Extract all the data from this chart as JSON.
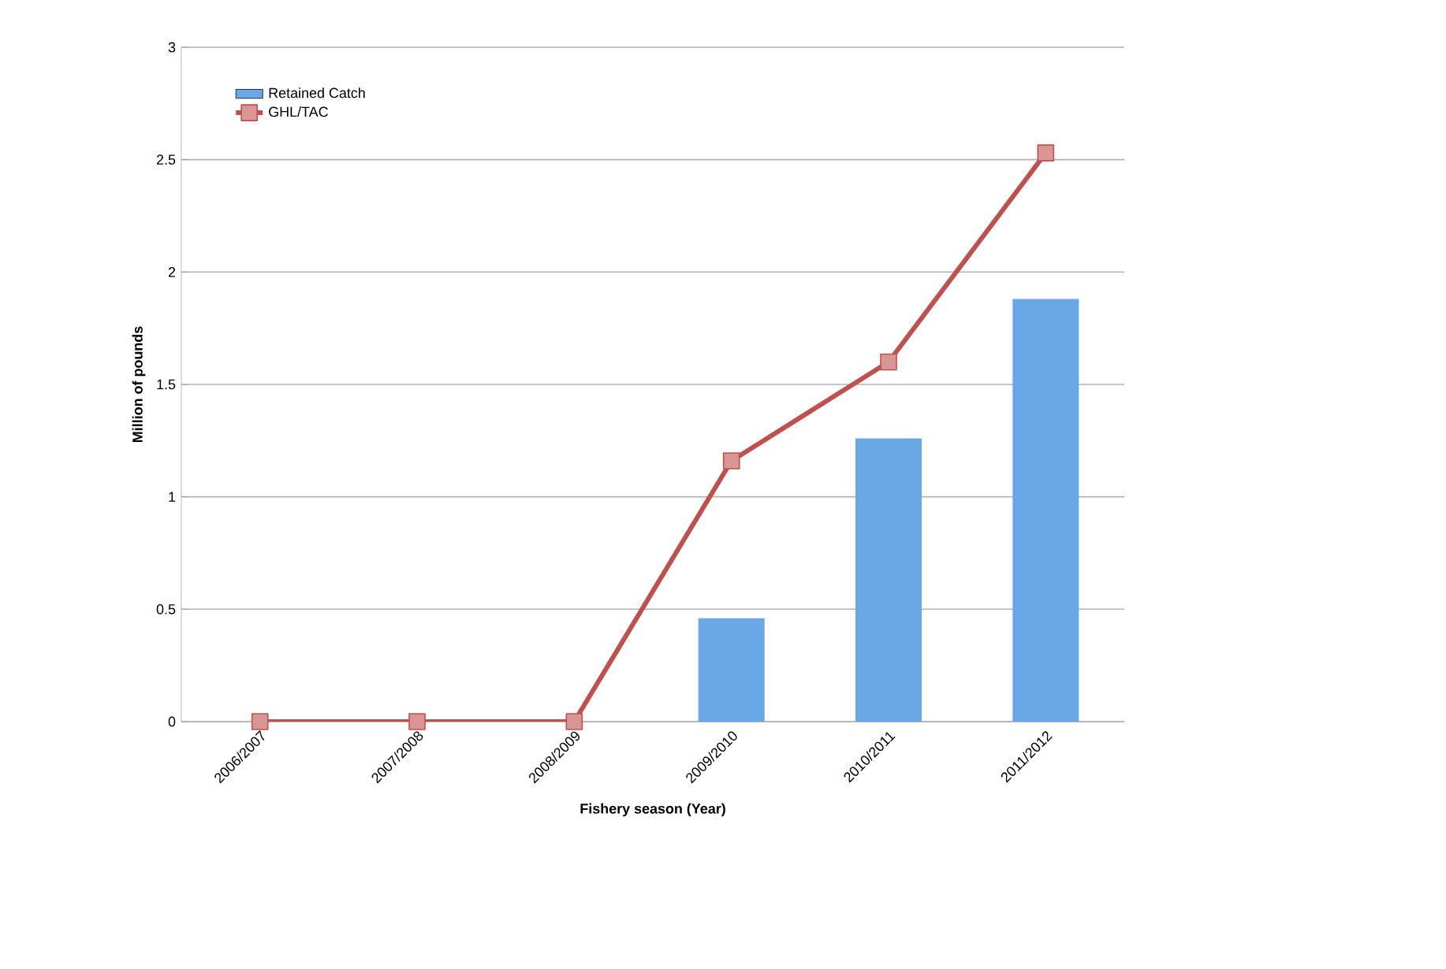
{
  "chart_data": {
    "type": "bar",
    "xlabel": "Fishery season (Year)",
    "ylabel": "Million of pounds",
    "categories": [
      "2006/2007",
      "2007/2008",
      "2008/2009",
      "2009/2010",
      "2010/2011",
      "2011/2012"
    ],
    "series": [
      {
        "name": "Retained Catch",
        "color": "#6aa7e6",
        "values": [
          null,
          null,
          null,
          0.46,
          1.26,
          1.88
        ]
      },
      {
        "name": "GHL/TAC",
        "type": "line",
        "color": "#c0504d",
        "marker": "square",
        "values": [
          0,
          0,
          0,
          1.16,
          1.6,
          2.53
        ]
      }
    ],
    "ylim": [
      0,
      3
    ],
    "yticks": [
      0,
      0.5,
      1,
      1.5,
      2,
      2.5,
      3
    ],
    "grid": "y",
    "legend": "top left"
  }
}
